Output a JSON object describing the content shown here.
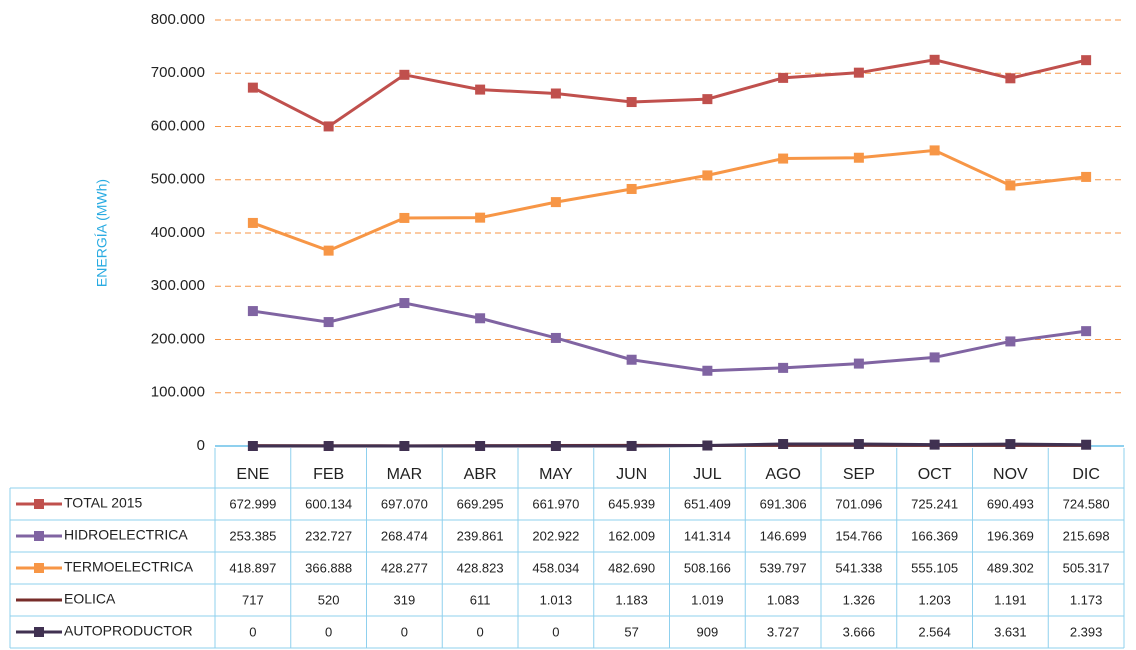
{
  "chart_data": {
    "type": "line",
    "ylabel": "ENERGÍA (MWh)",
    "categories": [
      "ENE",
      "FEB",
      "MAR",
      "ABR",
      "MAY",
      "JUN",
      "JUL",
      "AGO",
      "SEP",
      "OCT",
      "NOV",
      "DIC"
    ],
    "ylim": [
      0,
      800000
    ],
    "yticks": [
      0,
      {
        "value": 100000,
        "label": "100.000"
      },
      {
        "value": 200000,
        "label": "200.000"
      },
      {
        "value": 300000,
        "label": "300.000"
      },
      {
        "value": 400000,
        "label": "400.000"
      },
      {
        "value": 500000,
        "label": "500.000"
      },
      {
        "value": 600000,
        "label": "600.000"
      },
      {
        "value": 700000,
        "label": "700.000"
      },
      {
        "value": 800000,
        "label": "800.000"
      }
    ],
    "grid": true,
    "series": [
      {
        "name": "TOTAL 2015",
        "color": "#c0504d",
        "marker": "square",
        "values": [
          672999,
          600134,
          697070,
          669295,
          661970,
          645939,
          651409,
          691306,
          701096,
          725241,
          690493,
          724580
        ],
        "value_labels": [
          "672.999",
          "600.134",
          "697.070",
          "669.295",
          "661.970",
          "645.939",
          "651.409",
          "691.306",
          "701.096",
          "725.241",
          "690.493",
          "724.580"
        ]
      },
      {
        "name": "HIDROELECTRICA",
        "color": "#8064a2",
        "marker": "square",
        "values": [
          253385,
          232727,
          268474,
          239861,
          202922,
          162009,
          141314,
          146699,
          154766,
          166369,
          196369,
          215698
        ],
        "value_labels": [
          "253.385",
          "232.727",
          "268.474",
          "239.861",
          "202.922",
          "162.009",
          "141.314",
          "146.699",
          "154.766",
          "166.369",
          "196.369",
          "215.698"
        ]
      },
      {
        "name": "TERMOELECTRICA",
        "color": "#f79646",
        "marker": "square",
        "values": [
          418897,
          366888,
          428277,
          428823,
          458034,
          482690,
          508166,
          539797,
          541338,
          555105,
          489302,
          505317
        ],
        "value_labels": [
          "418.897",
          "366.888",
          "428.277",
          "428.823",
          "458.034",
          "482.690",
          "508.166",
          "539.797",
          "541.338",
          "555.105",
          "489.302",
          "505.317"
        ]
      },
      {
        "name": "EOLICA",
        "color": "#772c2a",
        "marker": "none",
        "values": [
          717,
          520,
          319,
          611,
          1013,
          1183,
          1019,
          1083,
          1326,
          1203,
          1191,
          1173
        ],
        "value_labels": [
          "717",
          "520",
          "319",
          "611",
          "1.013",
          "1.183",
          "1.019",
          "1.083",
          "1.326",
          "1.203",
          "1.191",
          "1.173"
        ]
      },
      {
        "name": "AUTOPRODUCTOR",
        "color": "#403151",
        "marker": "square",
        "values": [
          0,
          0,
          0,
          0,
          0,
          57,
          909,
          3727,
          3666,
          2564,
          3631,
          2393
        ],
        "value_labels": [
          "0",
          "0",
          "0",
          "0",
          "0",
          "57",
          "909",
          "3.727",
          "3.666",
          "2.564",
          "3.631",
          "2.393"
        ]
      }
    ]
  }
}
